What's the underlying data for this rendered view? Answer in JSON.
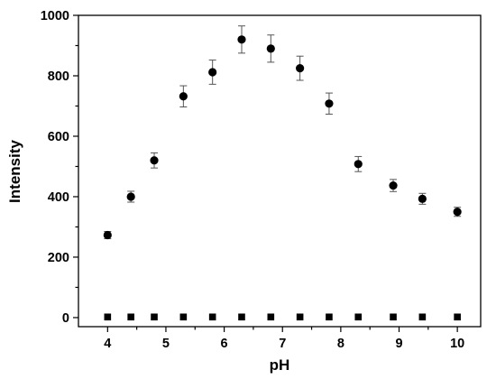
{
  "chart_data": {
    "type": "scatter",
    "xlabel": "pH",
    "ylabel": "Intensity",
    "xlim": [
      3.5,
      10.4
    ],
    "ylim": [
      -30,
      1000
    ],
    "xticks": [
      4,
      5,
      6,
      7,
      8,
      9,
      10
    ],
    "yticks": [
      0,
      200,
      400,
      600,
      800,
      1000
    ],
    "grid": false,
    "legend": "none",
    "series": [
      {
        "marker": "circle",
        "color": "#000000",
        "x": [
          4.0,
          4.4,
          4.8,
          5.3,
          5.8,
          6.3,
          6.8,
          7.3,
          7.8,
          8.3,
          8.9,
          9.4,
          10.0
        ],
        "y": [
          273,
          400,
          520,
          732,
          812,
          920,
          890,
          825,
          708,
          508,
          437,
          393,
          350
        ],
        "error": [
          12,
          18,
          25,
          35,
          40,
          45,
          45,
          40,
          35,
          25,
          20,
          18,
          15
        ]
      },
      {
        "marker": "square",
        "color": "#000000",
        "x": [
          4.0,
          4.4,
          4.8,
          5.3,
          5.8,
          6.3,
          6.8,
          7.3,
          7.8,
          8.3,
          8.9,
          9.4,
          10.0
        ],
        "y": [
          2,
          2,
          2,
          2,
          2,
          2,
          2,
          2,
          2,
          2,
          2,
          2,
          2
        ]
      }
    ]
  }
}
